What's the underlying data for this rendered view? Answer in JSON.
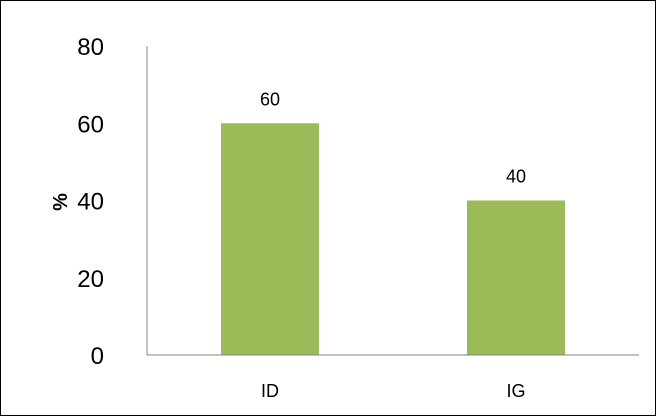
{
  "chart_data": {
    "type": "bar",
    "title": "",
    "xlabel": "",
    "ylabel": "%",
    "categories": [
      "ID",
      "IG"
    ],
    "values": [
      60,
      40
    ],
    "data_labels": [
      "60",
      "40"
    ],
    "ylim": [
      0,
      80
    ],
    "yticks": [
      0,
      20,
      40,
      60,
      80
    ],
    "grid": false,
    "legend": "none",
    "bar_color": "#9BBB59",
    "axis_color": "#868686"
  }
}
